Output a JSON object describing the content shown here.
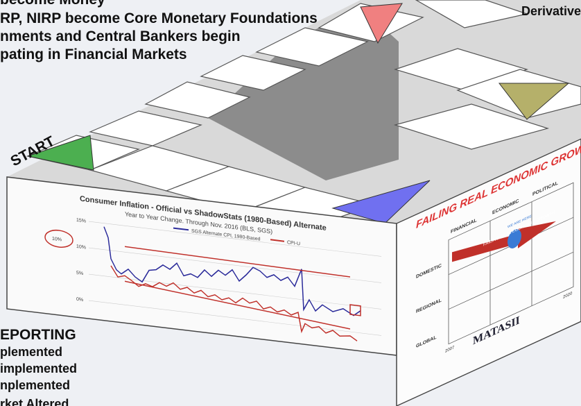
{
  "header_text": {
    "lines": [
      "become Money",
      "RP, NIRP become Core Monetary Foundations",
      "nments and Central Bankers begin",
      "pating in Financial Markets"
    ]
  },
  "top_right": "Derivative",
  "start": "START",
  "inset_chart": {
    "title": "Consumer Inflation - Official vs ShadowStats (1980-Based) Alternate",
    "subtitle": "Year to Year Change. Through Nov. 2016  (BLS, SGS)",
    "legend": [
      "SGS Alternate CPI, 1980-Based",
      "CPI-U"
    ],
    "yticks": [
      "15%",
      "10%",
      "5%",
      "0%"
    ],
    "circled": "10%"
  },
  "matrix": {
    "title": "FAILING REAL ECONOMIC GROWTH",
    "columns": [
      "FINANCIAL",
      "ECONOMIC",
      "POLITICAL"
    ],
    "rows": [
      "DOMESTIC",
      "REGIONAL",
      "GLOBAL"
    ],
    "arrow_label": "FAILING REAL ECONOMIC GROWTH",
    "marker": "WE ARE HERE",
    "years": [
      "2007",
      "2020"
    ],
    "logo": "MATASII"
  },
  "footer_text": {
    "lines": [
      "EPORTING",
      "plemented",
      "implemented",
      "nplemented",
      "rket Altered"
    ]
  }
}
